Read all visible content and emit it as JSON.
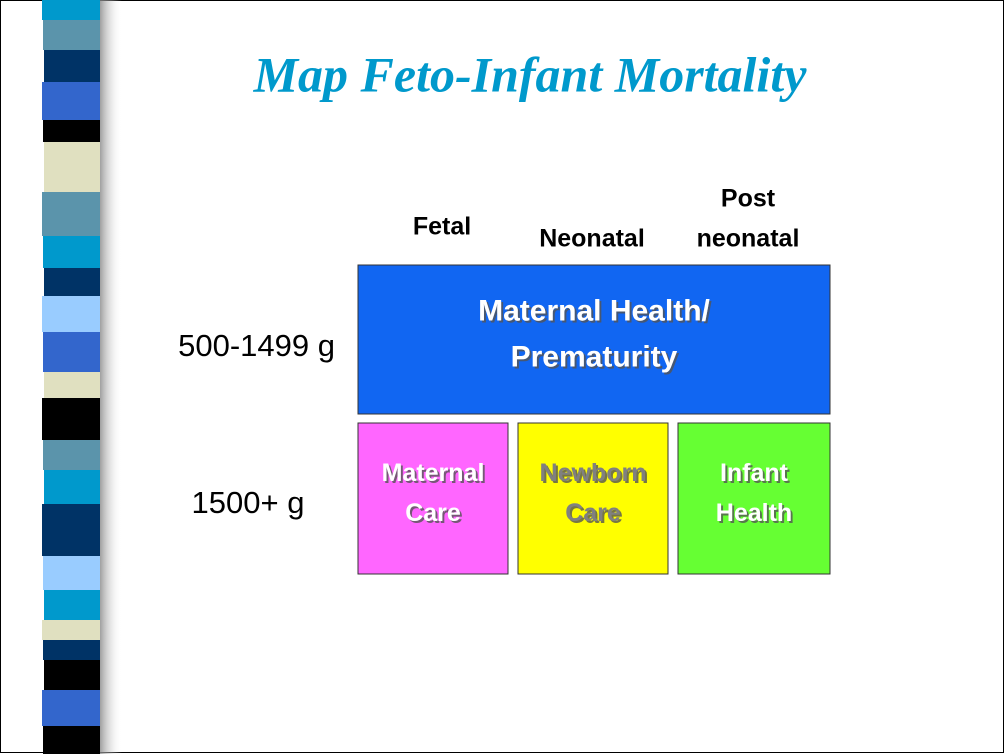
{
  "title": "Map Feto-Infant Mortality",
  "columns": [
    [
      "Fetal"
    ],
    [
      "Neonatal"
    ],
    [
      "Post",
      "neonatal"
    ]
  ],
  "rows": [
    "500-1499 g",
    "1500+ g"
  ],
  "boxes": [
    {
      "lines": [
        "Maternal Health/",
        "Prematurity"
      ]
    },
    {
      "lines": [
        "Maternal",
        "Care"
      ]
    },
    {
      "lines": [
        "Newborn",
        "Care"
      ]
    },
    {
      "lines": [
        "Infant",
        "Health"
      ]
    }
  ]
}
